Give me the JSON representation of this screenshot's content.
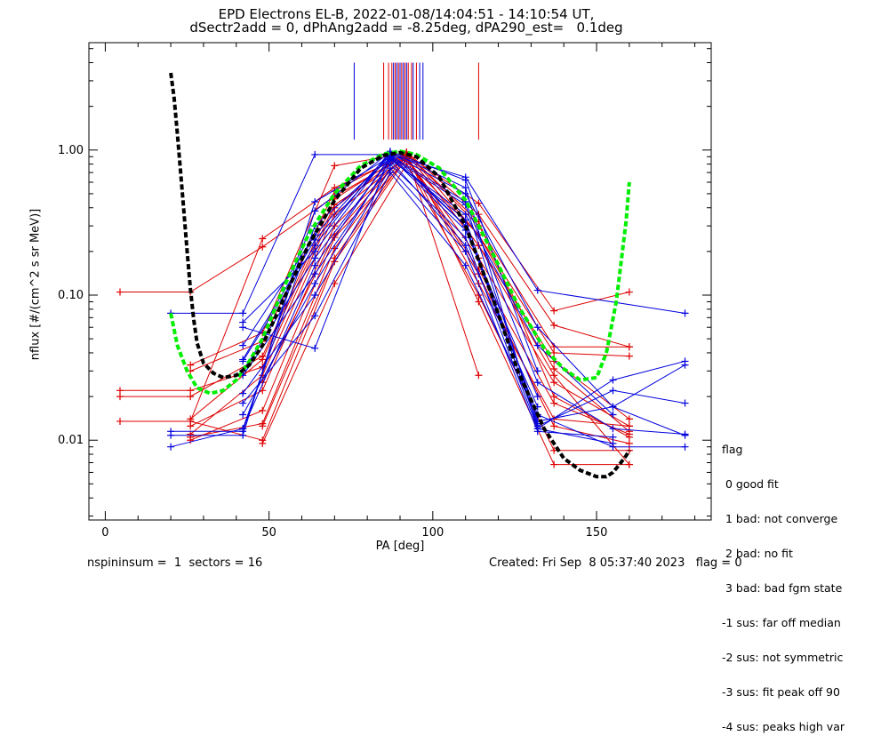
{
  "title": {
    "line1": "EPD Electrons EL-B, 2022-01-08/14:04:51 - 14:10:54 UT,",
    "line2": "dSectr2add = 0, dPhAng2add = -8.25deg, dPA290_est=   0.1deg"
  },
  "footer": {
    "left": "nspininsum =  1  sectors = 16",
    "right": "Created: Fri Sep  8 05:37:40 2023   flag = 0"
  },
  "legend": {
    "title": "flag",
    "items": [
      " 0 good fit",
      " 1 bad: not converge",
      " 2 bad: no fit",
      " 3 bad: bad fgm state",
      "-1 sus: far off median",
      "-2 sus: not symmetric",
      "-3 sus: fit peak off 90",
      "-4 sus: peaks high var"
    ]
  },
  "chart_data": {
    "type": "line",
    "xlabel": "PA [deg]",
    "ylabel": "nflux [#/(cm^2 s sr MeV)]",
    "xlim": [
      -5,
      185
    ],
    "ylim_log10": [
      -2.55,
      0.74
    ],
    "yscale": "log",
    "x_ticks": [
      0,
      50,
      100,
      150
    ],
    "x_tick_labels": [
      "0",
      "50",
      "100",
      "150"
    ],
    "y_ticks": [
      0.01,
      0.1,
      1.0
    ],
    "y_tick_labels": [
      "0.01",
      "0.10",
      "1.00"
    ],
    "colors": {
      "red": "#dd0000",
      "blue": "#0000dd",
      "green": "#00ee00",
      "black": "#000000"
    },
    "pa_bins": [
      4.5,
      20,
      26,
      42,
      48,
      64,
      70,
      87,
      92,
      110,
      114,
      132,
      137,
      160,
      177
    ],
    "vertical_markers": {
      "top": 4.0,
      "bottom": 1.18,
      "red_x": [
        85,
        86.5,
        87.5,
        88.5,
        89.5,
        90.5,
        91.5,
        92.5,
        93.5,
        95,
        114
      ],
      "blue_x": [
        76,
        88,
        89,
        90,
        91,
        92,
        94,
        96,
        97
      ]
    },
    "fits": [
      {
        "color": "green",
        "style": "dashed",
        "x": [
          20,
          22,
          25,
          28,
          32,
          36,
          40,
          44,
          48,
          55,
          62,
          70,
          78,
          85,
          90,
          95,
          102,
          110,
          118,
          126,
          134,
          140,
          145,
          150,
          153,
          156,
          159,
          160
        ],
        "y": [
          0.075,
          0.045,
          0.03,
          0.023,
          0.021,
          0.022,
          0.026,
          0.035,
          0.05,
          0.12,
          0.26,
          0.5,
          0.78,
          0.94,
          0.98,
          0.93,
          0.75,
          0.45,
          0.2,
          0.085,
          0.043,
          0.031,
          0.026,
          0.027,
          0.04,
          0.09,
          0.32,
          0.6
        ]
      },
      {
        "color": "black",
        "style": "dashed",
        "x": [
          20,
          21,
          22,
          23,
          24,
          25,
          26,
          27,
          28,
          30,
          33,
          36,
          40,
          44,
          48,
          55,
          62,
          70,
          78,
          85,
          90,
          95,
          102,
          110,
          118,
          126,
          134,
          140,
          145,
          150,
          153,
          155,
          157,
          159,
          160
        ],
        "y": [
          3.4,
          2.3,
          1.3,
          0.7,
          0.38,
          0.2,
          0.11,
          0.068,
          0.047,
          0.034,
          0.029,
          0.027,
          0.028,
          0.033,
          0.045,
          0.1,
          0.22,
          0.45,
          0.75,
          0.92,
          0.96,
          0.9,
          0.65,
          0.3,
          0.1,
          0.03,
          0.012,
          0.0075,
          0.0062,
          0.0056,
          0.0056,
          0.006,
          0.0068,
          0.0078,
          0.0085
        ]
      }
    ],
    "series": [
      {
        "color": "red",
        "x": [
          4.5,
          26,
          48,
          70,
          92,
          114
        ],
        "y": [
          0.105,
          0.105,
          0.215,
          0.48,
          0.92,
          0.028
        ]
      },
      {
        "color": "red",
        "x": [
          4.5,
          26,
          48,
          70,
          92,
          114,
          137,
          160
        ],
        "y": [
          0.0135,
          0.0135,
          0.245,
          0.55,
          0.93,
          0.43,
          0.078,
          0.105
        ]
      },
      {
        "color": "red",
        "x": [
          4.5,
          26,
          48,
          70,
          92,
          114,
          137,
          160
        ],
        "y": [
          0.022,
          0.022,
          0.032,
          0.4,
          0.97,
          0.36,
          0.062,
          0.044
        ]
      },
      {
        "color": "red",
        "x": [
          4.5,
          26,
          48,
          70,
          92,
          114,
          137,
          160
        ],
        "y": [
          0.02,
          0.02,
          0.038,
          0.46,
          0.95,
          0.22,
          0.035,
          0.014
        ]
      },
      {
        "color": "red",
        "x": [
          26,
          48,
          70,
          92,
          114,
          137,
          160
        ],
        "y": [
          0.03,
          0.048,
          0.52,
          0.96,
          0.3,
          0.044,
          0.044
        ]
      },
      {
        "color": "red",
        "x": [
          26,
          48,
          70,
          92,
          114,
          137,
          160
        ],
        "y": [
          0.014,
          0.036,
          0.42,
          0.88,
          0.18,
          0.025,
          0.0125
        ]
      },
      {
        "color": "red",
        "x": [
          26,
          48,
          70,
          92,
          114,
          137,
          160
        ],
        "y": [
          0.011,
          0.028,
          0.36,
          0.9,
          0.15,
          0.018,
          0.011
        ]
      },
      {
        "color": "red",
        "x": [
          26,
          48,
          70,
          92,
          114,
          137,
          160
        ],
        "y": [
          0.0125,
          0.022,
          0.3,
          0.93,
          0.12,
          0.014,
          0.0125
        ]
      },
      {
        "color": "red",
        "x": [
          26,
          48,
          70,
          92,
          114,
          137,
          160
        ],
        "y": [
          0.01,
          0.016,
          0.25,
          0.85,
          0.26,
          0.031,
          0.0115
        ]
      },
      {
        "color": "red",
        "x": [
          26,
          48,
          70,
          92,
          114,
          137,
          160
        ],
        "y": [
          0.0105,
          0.013,
          0.21,
          0.95,
          0.32,
          0.02,
          0.0105
        ]
      },
      {
        "color": "red",
        "x": [
          26,
          48,
          70,
          92,
          114,
          137,
          160
        ],
        "y": [
          0.033,
          0.055,
          0.78,
          0.95,
          0.22,
          0.028,
          0.0068
        ]
      },
      {
        "color": "red",
        "x": [
          26,
          48,
          70,
          92,
          114,
          137,
          160
        ],
        "y": [
          0.0135,
          0.01,
          0.17,
          0.88,
          0.14,
          0.0125,
          0.0095
        ]
      },
      {
        "color": "red",
        "x": [
          48,
          70,
          92,
          114,
          137,
          160
        ],
        "y": [
          0.0095,
          0.12,
          0.8,
          0.1,
          0.0085,
          0.0085
        ]
      },
      {
        "color": "red",
        "x": [
          48,
          70,
          92,
          114,
          137,
          160
        ],
        "y": [
          0.0125,
          0.18,
          0.92,
          0.09,
          0.0068,
          0.0068
        ]
      },
      {
        "color": "red",
        "x": [
          48,
          70,
          92,
          114,
          137,
          160
        ],
        "y": [
          0.025,
          0.26,
          0.97,
          0.26,
          0.04,
          0.038
        ]
      },
      {
        "color": "blue",
        "x": [
          20,
          42,
          64,
          87,
          110,
          132,
          177
        ],
        "y": [
          0.075,
          0.075,
          0.93,
          0.93,
          0.65,
          0.108,
          0.075
        ]
      },
      {
        "color": "blue",
        "x": [
          20,
          42,
          64,
          87,
          110,
          132,
          155,
          177
        ],
        "y": [
          0.0115,
          0.0115,
          0.38,
          0.97,
          0.55,
          0.012,
          0.026,
          0.035
        ]
      },
      {
        "color": "blue",
        "x": [
          20,
          42,
          64,
          87,
          110,
          132,
          155,
          177
        ],
        "y": [
          0.0108,
          0.0108,
          0.44,
          0.9,
          0.42,
          0.0135,
          0.017,
          0.0108
        ]
      },
      {
        "color": "blue",
        "x": [
          20,
          42,
          64,
          87,
          110,
          132,
          155,
          177
        ],
        "y": [
          0.009,
          0.012,
          0.3,
          0.88,
          0.33,
          0.0125,
          0.022,
          0.018
        ]
      },
      {
        "color": "blue",
        "x": [
          42,
          64,
          87,
          110,
          132,
          155,
          177
        ],
        "y": [
          0.065,
          0.2,
          0.96,
          0.3,
          0.015,
          0.009,
          0.009
        ]
      },
      {
        "color": "blue",
        "x": [
          42,
          64,
          87,
          110,
          132,
          155,
          177
        ],
        "y": [
          0.045,
          0.26,
          0.95,
          0.5,
          0.06,
          0.017,
          0.033
        ]
      },
      {
        "color": "blue",
        "x": [
          42,
          64,
          87,
          110,
          132,
          155,
          177
        ],
        "y": [
          0.036,
          0.24,
          0.92,
          0.44,
          0.025,
          0.012,
          0.011
        ]
      },
      {
        "color": "blue",
        "x": [
          42,
          64,
          87,
          110,
          132,
          155
        ],
        "y": [
          0.03,
          0.18,
          0.86,
          0.36,
          0.045,
          0.015
        ]
      },
      {
        "color": "blue",
        "x": [
          42,
          64,
          87,
          110,
          132,
          155
        ],
        "y": [
          0.028,
          0.14,
          0.8,
          0.25,
          0.012,
          0.0095
        ]
      },
      {
        "color": "blue",
        "x": [
          42,
          64,
          87,
          110,
          132,
          155
        ],
        "y": [
          0.021,
          0.1,
          0.75,
          0.2,
          0.0115,
          0.0105
        ]
      },
      {
        "color": "blue",
        "x": [
          42,
          64,
          87,
          110,
          132
        ],
        "y": [
          0.018,
          0.072,
          0.7,
          0.16,
          0.0145
        ]
      },
      {
        "color": "blue",
        "x": [
          42,
          64,
          87,
          110,
          132
        ],
        "y": [
          0.015,
          0.12,
          0.85,
          0.22,
          0.017
        ]
      },
      {
        "color": "blue",
        "x": [
          42,
          64,
          87,
          110,
          132
        ],
        "y": [
          0.012,
          0.16,
          0.9,
          0.28,
          0.02
        ]
      },
      {
        "color": "blue",
        "x": [
          42,
          64,
          87,
          110,
          132
        ],
        "y": [
          0.06,
          0.043,
          0.92,
          0.3,
          0.013
        ]
      },
      {
        "color": "blue",
        "x": [
          42,
          64,
          87,
          110,
          132
        ],
        "y": [
          0.035,
          0.22,
          0.98,
          0.62,
          0.03
        ]
      }
    ]
  }
}
